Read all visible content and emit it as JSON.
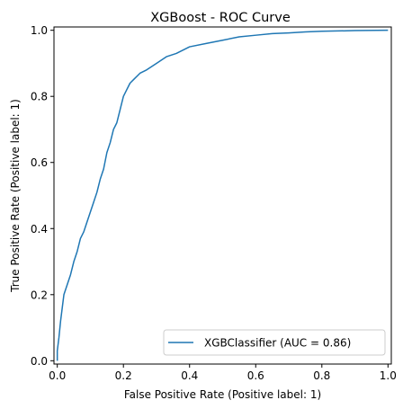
{
  "chart_data": {
    "type": "line",
    "title": "XGBoost - ROC Curve",
    "xlabel": "False Positive Rate (Positive label: 1)",
    "ylabel": "True Positive Rate (Positive label: 1)",
    "xlim": [
      -0.01,
      1.01
    ],
    "ylim": [
      -0.01,
      1.01
    ],
    "xticks": [
      0.0,
      0.2,
      0.4,
      0.6,
      0.8,
      1.0
    ],
    "yticks": [
      0.0,
      0.2,
      0.4,
      0.6,
      0.8,
      1.0
    ],
    "xtick_labels": [
      "0.0",
      "0.2",
      "0.4",
      "0.6",
      "0.8",
      "1.0"
    ],
    "ytick_labels": [
      "0.0",
      "0.2",
      "0.4",
      "0.6",
      "0.8",
      "1.0"
    ],
    "grid": false,
    "legend_position": "lower-right",
    "series": [
      {
        "name": "XGBClassifier (AUC = 0.86)",
        "color": "#1f77b4",
        "x": [
          0.0,
          0.0,
          0.005,
          0.01,
          0.015,
          0.02,
          0.03,
          0.04,
          0.05,
          0.06,
          0.07,
          0.08,
          0.09,
          0.1,
          0.11,
          0.12,
          0.13,
          0.14,
          0.15,
          0.16,
          0.17,
          0.18,
          0.19,
          0.2,
          0.21,
          0.22,
          0.23,
          0.25,
          0.27,
          0.3,
          0.33,
          0.36,
          0.4,
          0.45,
          0.5,
          0.55,
          0.6,
          0.65,
          0.7,
          0.75,
          0.8,
          0.9,
          1.0
        ],
        "y": [
          0.0,
          0.03,
          0.07,
          0.12,
          0.16,
          0.2,
          0.23,
          0.26,
          0.3,
          0.33,
          0.37,
          0.39,
          0.42,
          0.45,
          0.48,
          0.51,
          0.55,
          0.58,
          0.63,
          0.66,
          0.7,
          0.72,
          0.76,
          0.8,
          0.82,
          0.84,
          0.85,
          0.87,
          0.88,
          0.9,
          0.92,
          0.93,
          0.95,
          0.96,
          0.97,
          0.98,
          0.985,
          0.99,
          0.992,
          0.995,
          0.997,
          0.999,
          1.0
        ]
      }
    ]
  }
}
